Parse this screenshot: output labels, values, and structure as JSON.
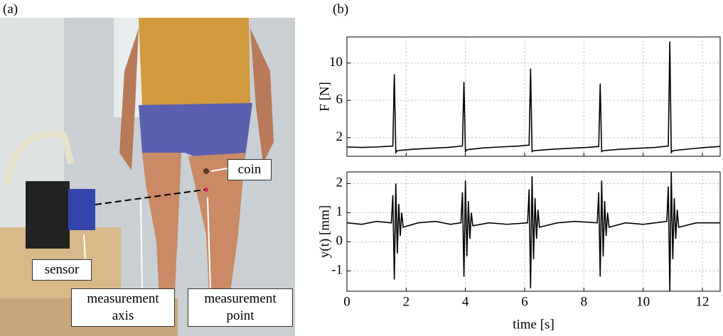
{
  "panel_a": {
    "panel_label": "(a)",
    "coin": "coin",
    "sensor": "sensor",
    "axis": "measurement axis",
    "point": "measurement point"
  },
  "panel_b_label": "(b)",
  "chart_data": [
    {
      "type": "line",
      "ylabel": "F [N]",
      "xlim": [
        0,
        12.6
      ],
      "ylim": [
        0,
        12.8
      ],
      "xticks": [
        0,
        2,
        4,
        6,
        8,
        10,
        12
      ],
      "yticks": [
        2,
        6,
        10
      ],
      "grid": true,
      "series": [
        {
          "color": "#000000",
          "x": [
            0,
            0.5,
            1,
            1.55,
            1.6,
            1.65,
            1.7,
            2.2,
            2.8,
            3.4,
            3.9,
            3.95,
            4.0,
            4.05,
            4.6,
            5.2,
            5.8,
            6.15,
            6.2,
            6.25,
            6.3,
            6.9,
            7.5,
            8.1,
            8.5,
            8.55,
            8.6,
            8.65,
            9.2,
            9.8,
            10.4,
            10.85,
            10.9,
            10.95,
            11.0,
            11.6,
            12.1,
            12.6
          ],
          "values": [
            1.0,
            0.95,
            1.0,
            1.1,
            8.8,
            0.4,
            0.6,
            0.75,
            0.85,
            0.95,
            1.1,
            8.0,
            0.5,
            0.7,
            0.9,
            1.0,
            1.1,
            1.2,
            9.4,
            0.5,
            0.6,
            0.75,
            0.85,
            0.95,
            1.05,
            7.8,
            0.5,
            0.6,
            0.75,
            0.85,
            0.95,
            1.1,
            12.3,
            0.4,
            0.6,
            0.8,
            0.95,
            1.05
          ]
        }
      ]
    },
    {
      "type": "line",
      "ylabel": "y(t) [mm]",
      "xlabel": "time [s]",
      "xlim": [
        0,
        12.6
      ],
      "ylim": [
        -1.7,
        2.4
      ],
      "xticks": [
        0,
        2,
        4,
        6,
        8,
        10,
        12
      ],
      "yticks": [
        -1,
        0,
        1,
        2
      ],
      "grid": true,
      "series": [
        {
          "color": "#000000",
          "x": [
            0,
            0.5,
            1.0,
            1.5,
            1.55,
            1.6,
            1.65,
            1.7,
            1.75,
            1.8,
            1.85,
            1.9,
            2.4,
            3.0,
            3.5,
            3.85,
            3.9,
            3.95,
            4.0,
            4.05,
            4.1,
            4.15,
            4.2,
            4.25,
            4.8,
            5.4,
            6.1,
            6.15,
            6.2,
            6.25,
            6.3,
            6.35,
            6.4,
            6.45,
            6.5,
            7.1,
            7.7,
            8.45,
            8.5,
            8.55,
            8.6,
            8.65,
            8.7,
            8.75,
            8.8,
            8.85,
            9.4,
            10.0,
            10.8,
            10.85,
            10.9,
            10.95,
            11.0,
            11.05,
            11.1,
            11.15,
            11.2,
            11.8,
            12.6
          ],
          "values": [
            0.65,
            0.6,
            0.7,
            0.65,
            1.6,
            -1.3,
            2.0,
            -0.4,
            1.3,
            0.2,
            1.0,
            0.5,
            0.65,
            0.7,
            0.6,
            0.65,
            1.7,
            -1.2,
            2.1,
            -0.5,
            1.4,
            0.1,
            1.0,
            0.55,
            0.65,
            0.6,
            0.65,
            1.8,
            -1.6,
            2.25,
            -0.6,
            1.5,
            0.1,
            1.1,
            0.5,
            0.65,
            0.7,
            0.65,
            1.7,
            -1.2,
            2.1,
            -0.5,
            1.4,
            0.2,
            1.0,
            0.5,
            0.65,
            0.6,
            0.7,
            1.9,
            -1.7,
            2.4,
            -0.6,
            1.5,
            0.1,
            1.1,
            0.5,
            0.65,
            0.65
          ]
        }
      ]
    }
  ]
}
